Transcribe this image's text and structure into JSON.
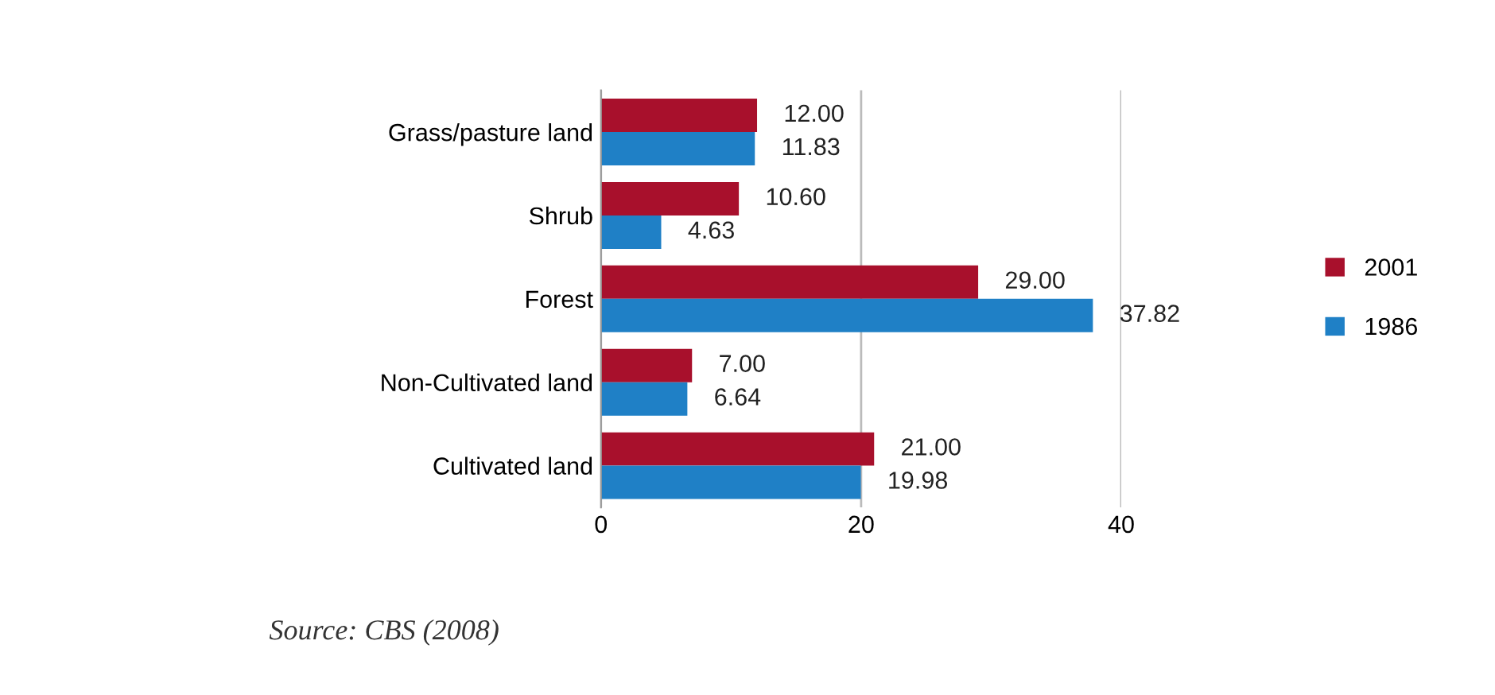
{
  "chart_data": {
    "type": "bar",
    "orientation": "horizontal",
    "categories": [
      "Grass/pasture land",
      "Shrub",
      "Forest",
      "Non-Cultivated land",
      "Cultivated land"
    ],
    "series": [
      {
        "name": "2001",
        "color": "#a8102c",
        "values": [
          12.0,
          10.6,
          29.0,
          7.0,
          21.0
        ],
        "value_labels": [
          "12.00",
          "10.60",
          "29.00",
          "7.00",
          "21.00"
        ]
      },
      {
        "name": "1986",
        "color": "#1f80c6",
        "values": [
          11.83,
          4.63,
          37.82,
          6.64,
          19.98
        ],
        "value_labels": [
          "11.83",
          "4.63",
          "37.82",
          "6.64",
          "19.98"
        ]
      }
    ],
    "xlim": [
      0,
      40
    ],
    "xticks": [
      0,
      20,
      40
    ],
    "grid": "x",
    "legend": "right",
    "annotations": [
      "Source: CBS (2008)"
    ]
  }
}
